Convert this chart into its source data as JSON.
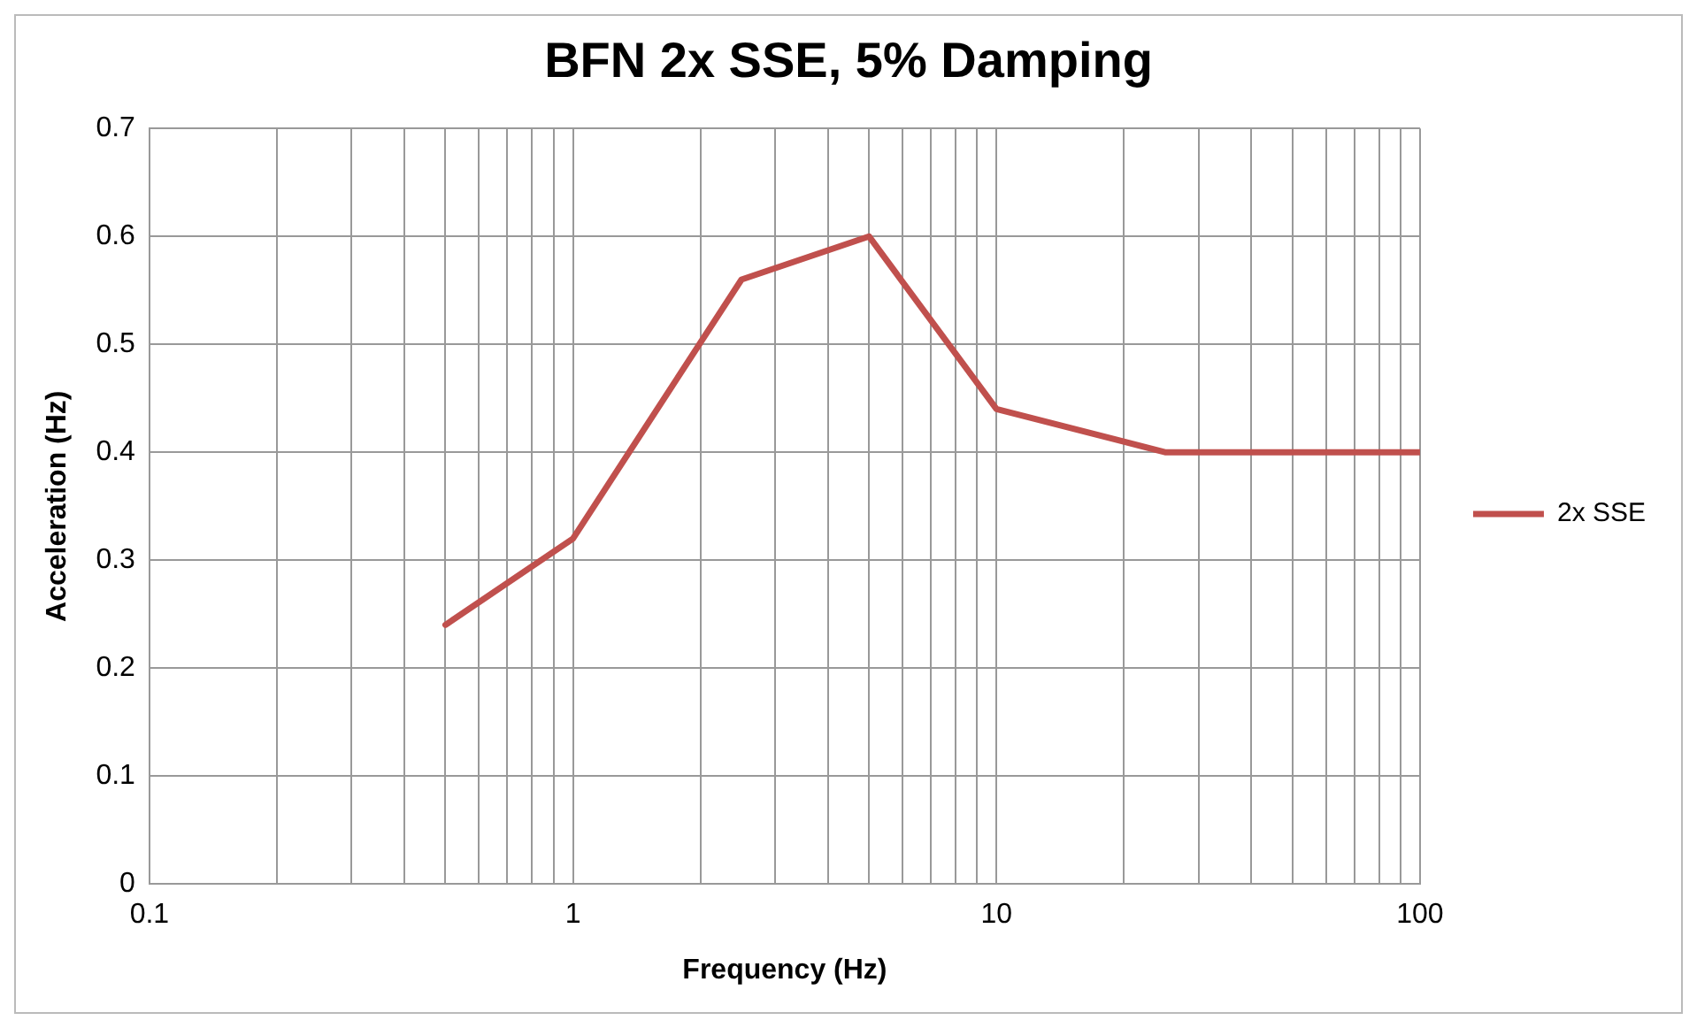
{
  "chart_data": {
    "type": "line",
    "title": "BFN 2x SSE, 5% Damping",
    "xlabel": "Frequency (Hz)",
    "ylabel": "Acceleration (Hz)",
    "log": "x",
    "xlim": [
      0.1,
      100
    ],
    "xticks": [
      0.1,
      {
        "value": 0.2,
        "label": null
      },
      {
        "value": 0.3,
        "label": null
      },
      {
        "value": 0.4,
        "label": null
      },
      {
        "value": 0.5,
        "label": null
      },
      {
        "value": 0.6,
        "label": null
      },
      {
        "value": 0.7,
        "label": null
      },
      {
        "value": 0.8,
        "label": null
      },
      {
        "value": 0.9,
        "label": null
      },
      1,
      {
        "value": 2,
        "label": null
      },
      {
        "value": 3,
        "label": null
      },
      {
        "value": 4,
        "label": null
      },
      {
        "value": 5,
        "label": null
      },
      {
        "value": 6,
        "label": null
      },
      {
        "value": 7,
        "label": null
      },
      {
        "value": 8,
        "label": null
      },
      {
        "value": 9,
        "label": null
      },
      10,
      {
        "value": 20,
        "label": null
      },
      {
        "value": 30,
        "label": null
      },
      {
        "value": 40,
        "label": null
      },
      {
        "value": 50,
        "label": null
      },
      {
        "value": 60,
        "label": null
      },
      {
        "value": 70,
        "label": null
      },
      {
        "value": 80,
        "label": null
      },
      {
        "value": 90,
        "label": null
      },
      100
    ],
    "ylim": [
      0,
      0.7
    ],
    "yticks": [
      0,
      0.1,
      0.2,
      0.3,
      0.4,
      0.5,
      0.6,
      0.7
    ],
    "grid": true,
    "legend": "right",
    "marker": "none",
    "line_style": "solid",
    "series": [
      {
        "name": "2x SSE",
        "color": "#c0504d",
        "x": [
          0.5,
          1,
          2.5,
          5,
          10,
          25,
          100
        ],
        "values": [
          0.24,
          0.32,
          0.56,
          0.6,
          0.44,
          0.4,
          0.4
        ]
      }
    ]
  }
}
